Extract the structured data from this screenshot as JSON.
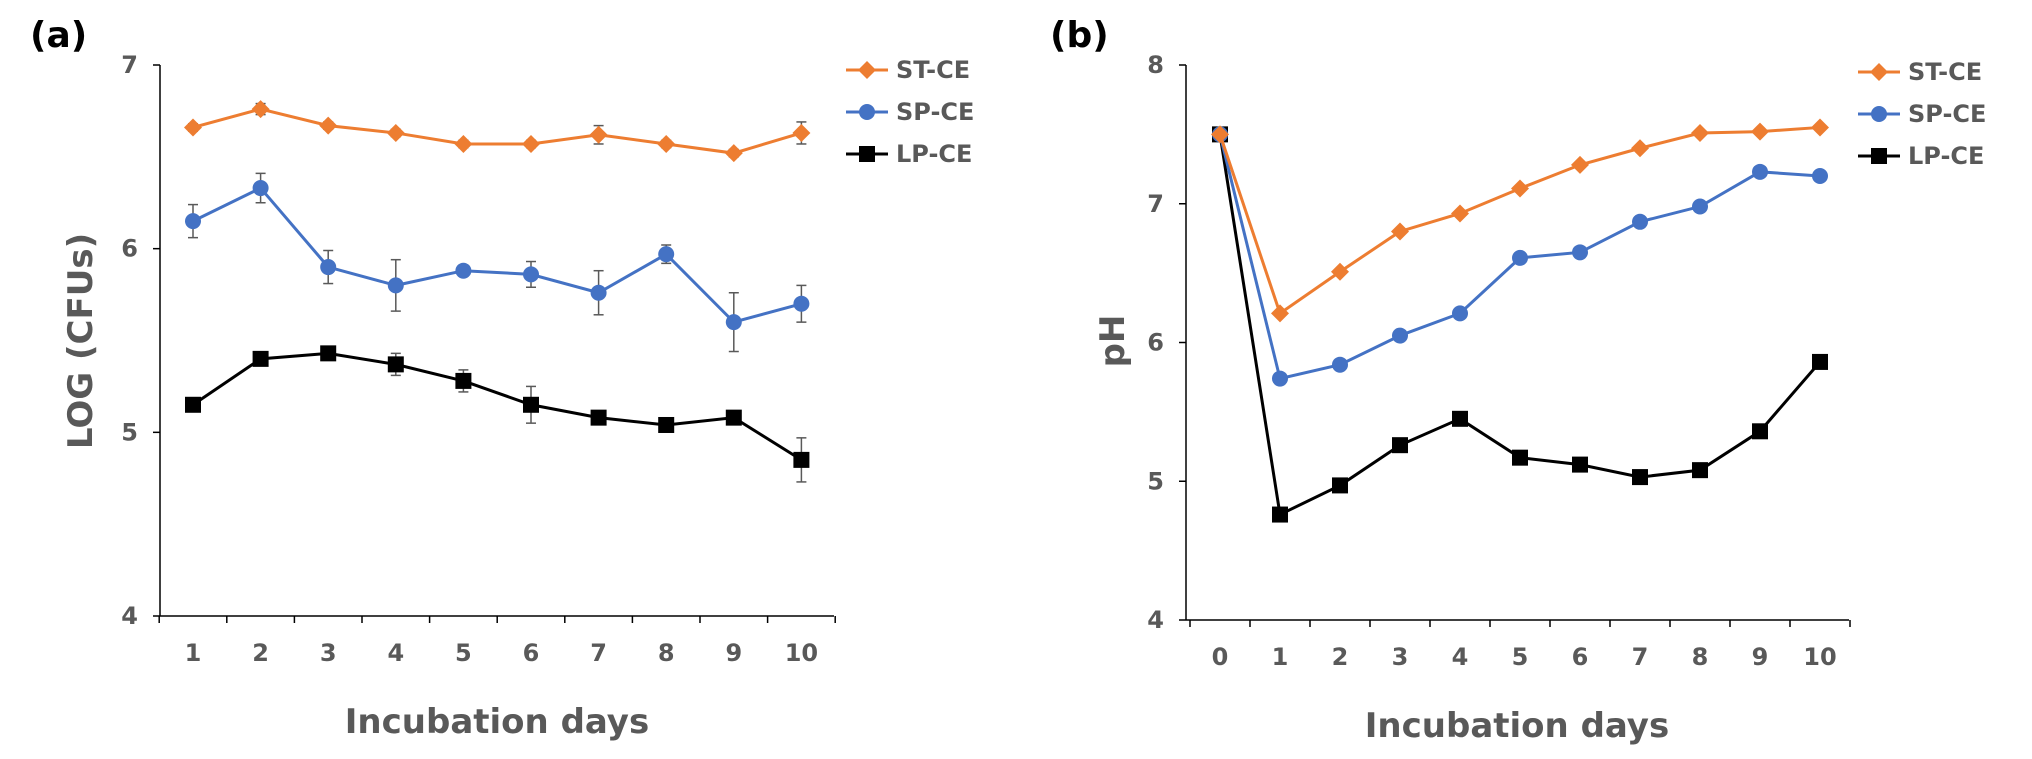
{
  "chart_data": [
    {
      "panel": "(a)",
      "type": "line",
      "xlabel": "Incubation days",
      "ylabel": "LOG (CFUs)",
      "xlim": [
        1,
        10
      ],
      "ylim": [
        4,
        7
      ],
      "yticks": [
        4,
        5,
        6,
        7
      ],
      "categories": [
        "1",
        "2",
        "3",
        "4",
        "5",
        "6",
        "7",
        "8",
        "9",
        "10"
      ],
      "legend_position": "top-right",
      "series": [
        {
          "name": "ST-CE",
          "color": "#ED7D31",
          "marker": "diamond",
          "values": [
            6.66,
            6.76,
            6.67,
            6.63,
            6.57,
            6.57,
            6.62,
            6.57,
            6.52,
            6.63
          ],
          "errors": [
            0.02,
            0.03,
            0.02,
            0.02,
            0.02,
            0.02,
            0.05,
            0.02,
            0.02,
            0.06
          ]
        },
        {
          "name": "SP-CE",
          "color": "#4472C4",
          "marker": "circle",
          "values": [
            6.15,
            6.33,
            5.9,
            5.8,
            5.88,
            5.86,
            5.76,
            5.97,
            5.6,
            5.7
          ],
          "errors": [
            0.09,
            0.08,
            0.09,
            0.14,
            0.03,
            0.07,
            0.12,
            0.05,
            0.16,
            0.1
          ]
        },
        {
          "name": "LP-CE",
          "color": "#000000",
          "marker": "square",
          "values": [
            5.15,
            5.4,
            5.43,
            5.37,
            5.28,
            5.15,
            5.08,
            5.04,
            5.08,
            4.85
          ],
          "errors": [
            0.02,
            0.02,
            0.02,
            0.06,
            0.06,
            0.1,
            0.03,
            0.02,
            0.02,
            0.12
          ]
        }
      ]
    },
    {
      "panel": "(b)",
      "type": "line",
      "xlabel": "Incubation days",
      "ylabel": "pH",
      "xlim": [
        0,
        10
      ],
      "ylim": [
        4,
        8
      ],
      "yticks": [
        4,
        5,
        6,
        7,
        8
      ],
      "categories": [
        "0",
        "1",
        "2",
        "3",
        "4",
        "5",
        "6",
        "7",
        "8",
        "9",
        "10"
      ],
      "legend_position": "top-right",
      "series": [
        {
          "name": "ST-CE",
          "color": "#ED7D31",
          "marker": "diamond",
          "values": [
            7.5,
            6.21,
            6.51,
            6.8,
            6.93,
            7.11,
            7.28,
            7.4,
            7.51,
            7.52,
            7.55
          ]
        },
        {
          "name": "SP-CE",
          "color": "#4472C4",
          "marker": "circle",
          "values": [
            7.5,
            5.74,
            5.84,
            6.05,
            6.21,
            6.61,
            6.65,
            6.87,
            6.98,
            7.23,
            7.2
          ]
        },
        {
          "name": "LP-CE",
          "color": "#000000",
          "marker": "square",
          "values": [
            7.5,
            4.76,
            4.97,
            5.26,
            5.45,
            5.17,
            5.12,
            5.03,
            5.08,
            5.36,
            5.86
          ]
        }
      ]
    }
  ]
}
